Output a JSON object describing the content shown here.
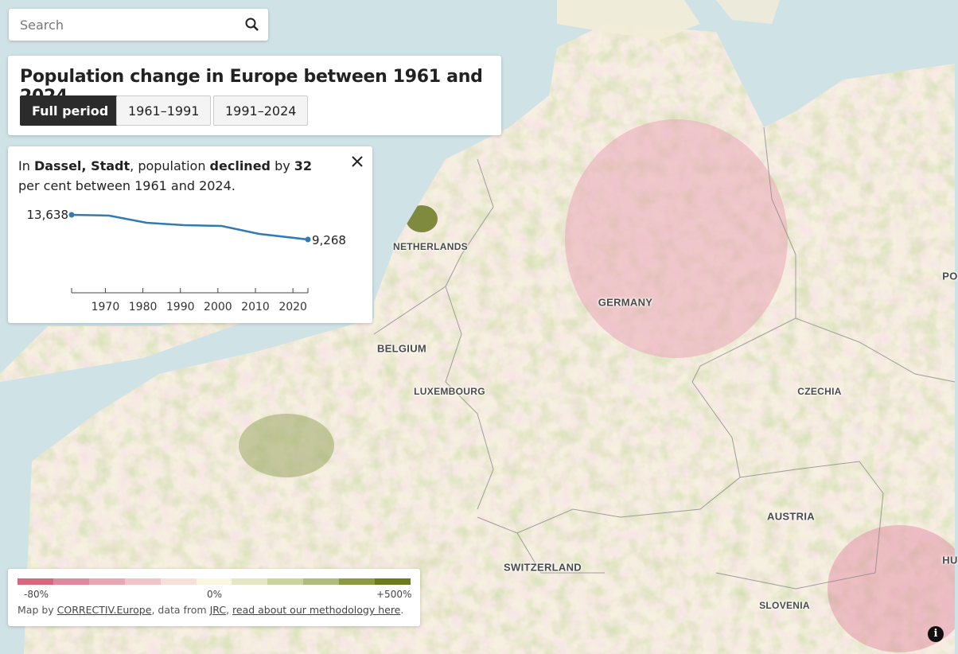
{
  "search": {
    "placeholder": "Search",
    "value": ""
  },
  "header": {
    "title": "Population change in Europe between 1961 and 2024",
    "periods": [
      {
        "label": "Full period",
        "active": true
      },
      {
        "label": "1961–1991",
        "active": false
      },
      {
        "label": "1991–2024",
        "active": false
      }
    ]
  },
  "info": {
    "prefix": "In ",
    "place": "Dassel, Stadt",
    "mid": ", population ",
    "direction": "declined",
    "by": " by ",
    "percent": "32",
    "suffix": " per cent between 1961 and 2024.",
    "close_icon": "close-icon"
  },
  "chart_data": {
    "type": "line",
    "x": [
      1961,
      1971,
      1981,
      1991,
      2001,
      2011,
      2024
    ],
    "values": [
      13638,
      13500,
      12230,
      11800,
      11660,
      10250,
      9268
    ],
    "start_label": "13,638",
    "end_label": "9,268",
    "xticks": [
      1970,
      1980,
      1990,
      2000,
      2010,
      2020
    ],
    "xlim": [
      1961,
      2024
    ],
    "line_color": "#2f7bb4"
  },
  "legend": {
    "colors": [
      "#d7667f",
      "#de8a9c",
      "#e7a7b3",
      "#efc5ca",
      "#f6e0dc",
      "#fbf6e2",
      "#e4e6c4",
      "#cbd39f",
      "#aebb7c",
      "#8c9a43",
      "#6a7a1c"
    ],
    "min_label": "-80%",
    "mid_label": "0%",
    "max_label": "+500%",
    "attribution": {
      "text1": "Map by ",
      "link1": "CORRECTIV.Europe",
      "text2": ", data from ",
      "link2": "JRC",
      "text3": ", ",
      "link3": "read about our methodology here",
      "text4": "."
    }
  },
  "map": {
    "labels": [
      "NETHERLANDS",
      "GERMANY",
      "BELGIUM",
      "LUXEMBOURG",
      "CZECHIA",
      "AUSTRIA",
      "SWITZERLAND",
      "SLOVENIA",
      "PO",
      "HU"
    ]
  },
  "info_button": "i"
}
